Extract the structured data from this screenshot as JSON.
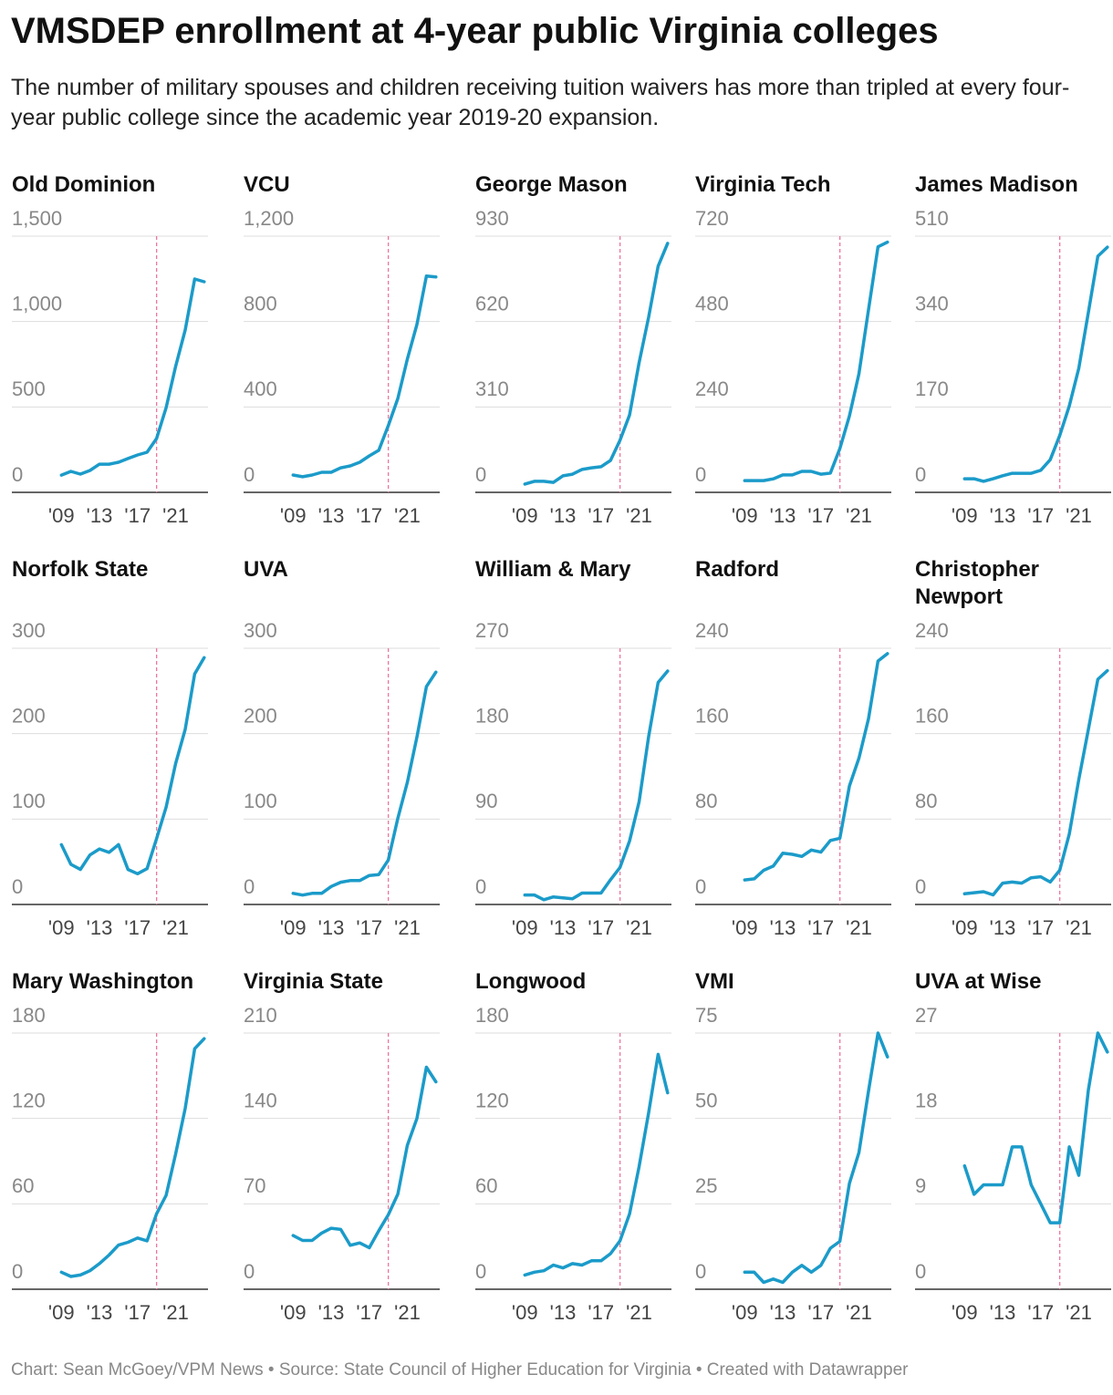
{
  "title": "VMSDEP enrollment at 4-year public Virginia colleges",
  "subtitle": "The number of military spouses and children receiving tuition waivers has more than tripled at every four-year public college since the academic year 2019-20 expansion.",
  "source": "Chart: Sean McGoey/VPM News • Source: State Council of Higher Education for Virginia • Created with Datawrapper",
  "chart_data": [
    {
      "type": "line",
      "title": "Old Dominion",
      "color": "#1b9bc9",
      "reference_x": 2019,
      "x": [
        2009,
        2010,
        2011,
        2012,
        2013,
        2014,
        2015,
        2016,
        2017,
        2018,
        2019,
        2020,
        2021,
        2022,
        2023,
        2024
      ],
      "values": [
        101,
        123,
        107,
        128,
        165,
        165,
        176,
        198,
        219,
        235,
        315,
        496,
        737,
        950,
        1249,
        1233
      ],
      "xlim": [
        2003.8,
        2024.4
      ],
      "xticks": [
        {
          "value": 2009,
          "label": "'09"
        },
        {
          "value": 2013,
          "label": "'13"
        },
        {
          "value": 2017,
          "label": "'17"
        },
        {
          "value": 2021,
          "label": "'21"
        }
      ],
      "ylim": [
        0,
        1500
      ],
      "yticks": [
        0,
        500,
        {
          "value": 1000,
          "label": "1,000"
        },
        {
          "value": 1500,
          "label": "1,500"
        }
      ],
      "grid": true
    },
    {
      "type": "line",
      "title": "VCU",
      "color": "#1b9bc9",
      "reference_x": 2019,
      "x": [
        2009,
        2010,
        2011,
        2012,
        2013,
        2014,
        2015,
        2016,
        2017,
        2018,
        2019,
        2020,
        2021,
        2022,
        2023,
        2024
      ],
      "values": [
        81,
        73,
        81,
        94,
        94,
        115,
        124,
        141,
        171,
        197,
        312,
        440,
        624,
        786,
        1013,
        1009
      ],
      "xlim": [
        2003.8,
        2024.4
      ],
      "xticks": [
        {
          "value": 2009,
          "label": "'09"
        },
        {
          "value": 2013,
          "label": "'13"
        },
        {
          "value": 2017,
          "label": "'17"
        },
        {
          "value": 2021,
          "label": "'21"
        }
      ],
      "ylim": [
        0,
        1200
      ],
      "yticks": [
        0,
        400,
        800,
        {
          "value": 1200,
          "label": "1,200"
        }
      ],
      "grid": true
    },
    {
      "type": "line",
      "title": "George Mason",
      "color": "#1b9bc9",
      "reference_x": 2019,
      "x": [
        2009,
        2010,
        2011,
        2012,
        2013,
        2014,
        2015,
        2016,
        2017,
        2018,
        2019,
        2020,
        2021,
        2022,
        2023,
        2024
      ],
      "values": [
        30,
        40,
        40,
        36,
        60,
        66,
        83,
        89,
        93,
        116,
        189,
        281,
        470,
        636,
        821,
        904
      ],
      "xlim": [
        2003.8,
        2024.4
      ],
      "xticks": [
        {
          "value": 2009,
          "label": "'09"
        },
        {
          "value": 2013,
          "label": "'13"
        },
        {
          "value": 2017,
          "label": "'17"
        },
        {
          "value": 2021,
          "label": "'21"
        }
      ],
      "ylim": [
        0,
        930
      ],
      "yticks": [
        0,
        310,
        620,
        930
      ],
      "grid": true
    },
    {
      "type": "line",
      "title": "Virginia Tech",
      "color": "#1b9bc9",
      "reference_x": 2019,
      "x": [
        2009,
        2010,
        2011,
        2012,
        2013,
        2014,
        2015,
        2016,
        2017,
        2018,
        2019,
        2020,
        2021,
        2022,
        2023,
        2024
      ],
      "values": [
        33,
        33,
        33,
        38,
        49,
        49,
        59,
        59,
        51,
        54,
        123,
        215,
        333,
        513,
        690,
        703
      ],
      "xlim": [
        2003.8,
        2024.4
      ],
      "xticks": [
        {
          "value": 2009,
          "label": "'09"
        },
        {
          "value": 2013,
          "label": "'13"
        },
        {
          "value": 2017,
          "label": "'17"
        },
        {
          "value": 2021,
          "label": "'21"
        }
      ],
      "ylim": [
        0,
        720
      ],
      "yticks": [
        0,
        240,
        480,
        720
      ],
      "grid": true
    },
    {
      "type": "line",
      "title": "James Madison",
      "color": "#1b9bc9",
      "reference_x": 2019,
      "x": [
        2009,
        2010,
        2011,
        2012,
        2013,
        2014,
        2015,
        2016,
        2017,
        2018,
        2019,
        2020,
        2021,
        2022,
        2023,
        2024
      ],
      "values": [
        27,
        27,
        22,
        27,
        33,
        38,
        38,
        38,
        44,
        65,
        113,
        172,
        247,
        358,
        470,
        488
      ],
      "xlim": [
        2003.8,
        2024.4
      ],
      "xticks": [
        {
          "value": 2009,
          "label": "'09"
        },
        {
          "value": 2013,
          "label": "'13"
        },
        {
          "value": 2017,
          "label": "'17"
        },
        {
          "value": 2021,
          "label": "'21"
        }
      ],
      "ylim": [
        0,
        510
      ],
      "yticks": [
        0,
        170,
        340,
        510
      ],
      "grid": true
    },
    {
      "type": "line",
      "title": "Norfolk State",
      "color": "#1b9bc9",
      "reference_x": 2019,
      "x": [
        2009,
        2010,
        2011,
        2012,
        2013,
        2014,
        2015,
        2016,
        2017,
        2018,
        2019,
        2020,
        2021,
        2022,
        2023,
        2024
      ],
      "values": [
        70,
        47,
        41,
        58,
        65,
        61,
        70,
        41,
        36,
        42,
        77,
        114,
        165,
        205,
        270,
        289
      ],
      "xlim": [
        2003.8,
        2024.4
      ],
      "xticks": [
        {
          "value": 2009,
          "label": "'09"
        },
        {
          "value": 2013,
          "label": "'13"
        },
        {
          "value": 2017,
          "label": "'17"
        },
        {
          "value": 2021,
          "label": "'21"
        }
      ],
      "ylim": [
        0,
        300
      ],
      "yticks": [
        0,
        100,
        200,
        300
      ],
      "grid": true
    },
    {
      "type": "line",
      "title": "UVA",
      "color": "#1b9bc9",
      "reference_x": 2019,
      "x": [
        2009,
        2010,
        2011,
        2012,
        2013,
        2014,
        2015,
        2016,
        2017,
        2018,
        2019,
        2020,
        2021,
        2022,
        2023,
        2024
      ],
      "values": [
        13,
        11,
        13,
        13,
        21,
        26,
        28,
        28,
        34,
        35,
        52,
        101,
        143,
        196,
        255,
        272
      ],
      "xlim": [
        2003.8,
        2024.4
      ],
      "xticks": [
        {
          "value": 2009,
          "label": "'09"
        },
        {
          "value": 2013,
          "label": "'13"
        },
        {
          "value": 2017,
          "label": "'17"
        },
        {
          "value": 2021,
          "label": "'21"
        }
      ],
      "ylim": [
        0,
        300
      ],
      "yticks": [
        0,
        100,
        200,
        300
      ],
      "grid": true
    },
    {
      "type": "line",
      "title": "William & Mary",
      "color": "#1b9bc9",
      "reference_x": 2019,
      "x": [
        2009,
        2010,
        2011,
        2012,
        2013,
        2014,
        2015,
        2016,
        2017,
        2018,
        2019,
        2020,
        2021,
        2022,
        2023,
        2024
      ],
      "values": [
        10,
        10,
        5,
        8,
        7,
        6,
        12,
        12,
        12,
        26,
        39,
        67,
        108,
        177,
        234,
        246
      ],
      "xlim": [
        2003.8,
        2024.4
      ],
      "xticks": [
        {
          "value": 2009,
          "label": "'09"
        },
        {
          "value": 2013,
          "label": "'13"
        },
        {
          "value": 2017,
          "label": "'17"
        },
        {
          "value": 2021,
          "label": "'21"
        }
      ],
      "ylim": [
        0,
        270
      ],
      "yticks": [
        0,
        90,
        180,
        270
      ],
      "grid": true
    },
    {
      "type": "line",
      "title": "Radford",
      "color": "#1b9bc9",
      "reference_x": 2019,
      "x": [
        2009,
        2010,
        2011,
        2012,
        2013,
        2014,
        2015,
        2016,
        2017,
        2018,
        2019,
        2020,
        2021,
        2022,
        2023,
        2024
      ],
      "values": [
        23,
        24,
        32,
        36,
        48,
        47,
        45,
        51,
        49,
        60,
        62,
        111,
        137,
        174,
        228,
        235
      ],
      "xlim": [
        2003.8,
        2024.4
      ],
      "xticks": [
        {
          "value": 2009,
          "label": "'09"
        },
        {
          "value": 2013,
          "label": "'13"
        },
        {
          "value": 2017,
          "label": "'17"
        },
        {
          "value": 2021,
          "label": "'21"
        }
      ],
      "ylim": [
        0,
        240
      ],
      "yticks": [
        0,
        80,
        160,
        240
      ],
      "grid": true
    },
    {
      "type": "line",
      "title": "Christopher Newport",
      "color": "#1b9bc9",
      "reference_x": 2019,
      "x": [
        2009,
        2010,
        2011,
        2012,
        2013,
        2014,
        2015,
        2016,
        2017,
        2018,
        2019,
        2020,
        2021,
        2022,
        2023,
        2024
      ],
      "values": [
        10,
        11,
        12,
        9,
        20,
        21,
        20,
        25,
        26,
        21,
        32,
        66,
        117,
        164,
        211,
        219
      ],
      "xlim": [
        2003.8,
        2024.4
      ],
      "xticks": [
        {
          "value": 2009,
          "label": "'09"
        },
        {
          "value": 2013,
          "label": "'13"
        },
        {
          "value": 2017,
          "label": "'17"
        },
        {
          "value": 2021,
          "label": "'21"
        }
      ],
      "ylim": [
        0,
        240
      ],
      "yticks": [
        0,
        80,
        160,
        240
      ],
      "grid": true
    },
    {
      "type": "line",
      "title": "Mary Washington",
      "color": "#1b9bc9",
      "reference_x": 2019,
      "x": [
        2009,
        2010,
        2011,
        2012,
        2013,
        2014,
        2015,
        2016,
        2017,
        2018,
        2019,
        2020,
        2021,
        2022,
        2023,
        2024
      ],
      "values": [
        12,
        9,
        10,
        13,
        18,
        24,
        31,
        33,
        36,
        34,
        53,
        66,
        95,
        127,
        169,
        176
      ],
      "xlim": [
        2003.8,
        2024.4
      ],
      "xticks": [
        {
          "value": 2009,
          "label": "'09"
        },
        {
          "value": 2013,
          "label": "'13"
        },
        {
          "value": 2017,
          "label": "'17"
        },
        {
          "value": 2021,
          "label": "'21"
        }
      ],
      "ylim": [
        0,
        180
      ],
      "yticks": [
        0,
        60,
        120,
        180
      ],
      "grid": true
    },
    {
      "type": "line",
      "title": "Virginia State",
      "color": "#1b9bc9",
      "reference_x": 2019,
      "x": [
        2009,
        2010,
        2011,
        2012,
        2013,
        2014,
        2015,
        2016,
        2017,
        2018,
        2019,
        2020,
        2021,
        2022,
        2023,
        2024
      ],
      "values": [
        44,
        40,
        40,
        46,
        50,
        49,
        36,
        38,
        34,
        48,
        61,
        78,
        118,
        140,
        182,
        170
      ],
      "xlim": [
        2003.8,
        2024.4
      ],
      "xticks": [
        {
          "value": 2009,
          "label": "'09"
        },
        {
          "value": 2013,
          "label": "'13"
        },
        {
          "value": 2017,
          "label": "'17"
        },
        {
          "value": 2021,
          "label": "'21"
        }
      ],
      "ylim": [
        0,
        210
      ],
      "yticks": [
        0,
        70,
        140,
        210
      ],
      "grid": true
    },
    {
      "type": "line",
      "title": "Longwood",
      "color": "#1b9bc9",
      "reference_x": 2019,
      "x": [
        2009,
        2010,
        2011,
        2012,
        2013,
        2014,
        2015,
        2016,
        2017,
        2018,
        2019,
        2020,
        2021,
        2022,
        2023,
        2024
      ],
      "values": [
        10,
        12,
        13,
        17,
        15,
        18,
        17,
        20,
        20,
        25,
        34,
        53,
        86,
        124,
        165,
        138
      ],
      "xlim": [
        2003.8,
        2024.4
      ],
      "xticks": [
        {
          "value": 2009,
          "label": "'09"
        },
        {
          "value": 2013,
          "label": "'13"
        },
        {
          "value": 2017,
          "label": "'17"
        },
        {
          "value": 2021,
          "label": "'21"
        }
      ],
      "ylim": [
        0,
        180
      ],
      "yticks": [
        0,
        60,
        120,
        180
      ],
      "grid": true
    },
    {
      "type": "line",
      "title": "VMI",
      "color": "#1b9bc9",
      "reference_x": 2019,
      "x": [
        2009,
        2010,
        2011,
        2012,
        2013,
        2014,
        2015,
        2016,
        2017,
        2018,
        2019,
        2020,
        2021,
        2022,
        2023,
        2024
      ],
      "values": [
        5,
        5,
        2,
        3,
        2,
        5,
        7,
        5,
        7,
        12,
        14,
        31,
        40,
        58,
        75,
        68
      ],
      "xlim": [
        2003.8,
        2024.4
      ],
      "xticks": [
        {
          "value": 2009,
          "label": "'09"
        },
        {
          "value": 2013,
          "label": "'13"
        },
        {
          "value": 2017,
          "label": "'17"
        },
        {
          "value": 2021,
          "label": "'21"
        }
      ],
      "ylim": [
        0,
        75
      ],
      "yticks": [
        0,
        25,
        50,
        75
      ],
      "grid": true
    },
    {
      "type": "line",
      "title": "UVA at Wise",
      "color": "#1b9bc9",
      "reference_x": 2019,
      "x": [
        2009,
        2010,
        2011,
        2012,
        2013,
        2014,
        2015,
        2016,
        2017,
        2018,
        2019,
        2020,
        2021,
        2022,
        2023,
        2024
      ],
      "values": [
        13,
        10,
        11,
        11,
        11,
        15,
        15,
        11,
        9,
        7,
        7,
        15,
        12,
        21,
        27,
        25
      ],
      "xlim": [
        2003.8,
        2024.4
      ],
      "xticks": [
        {
          "value": 2009,
          "label": "'09"
        },
        {
          "value": 2013,
          "label": "'13"
        },
        {
          "value": 2017,
          "label": "'17"
        },
        {
          "value": 2021,
          "label": "'21"
        }
      ],
      "ylim": [
        0,
        27
      ],
      "yticks": [
        0,
        9,
        18,
        27
      ],
      "grid": true
    }
  ]
}
